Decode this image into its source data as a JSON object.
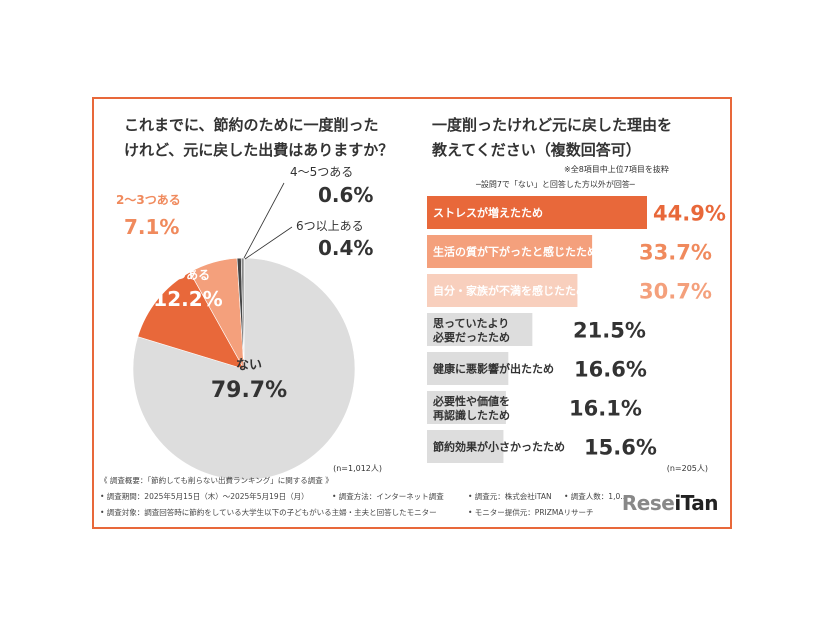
{
  "chart_data": [
    {
      "type": "pie",
      "title": "これまでに、節約のために一度削ったけれど、元に戻した出費はありますか？",
      "n_label": "(n=1,012人)",
      "slices": [
        {
          "label": "ない",
          "value": 79.7,
          "value_label": "79.7%",
          "color": "#dddddd",
          "label_color": "#333333"
        },
        {
          "label": "1つある",
          "value": 12.2,
          "value_label": "12.2%",
          "color": "#e8683a",
          "label_color": "#ffffff"
        },
        {
          "label": "2〜3つある",
          "value": 7.1,
          "value_label": "7.1%",
          "color": "#f4a07c",
          "label_color": "#f08a5d"
        },
        {
          "label": "4〜5つある",
          "value": 0.6,
          "value_label": "0.6%",
          "color": "#444444",
          "label_color": "#333333"
        },
        {
          "label": "6つ以上ある",
          "value": 0.4,
          "value_label": "0.4%",
          "color": "#888888",
          "label_color": "#333333"
        }
      ]
    },
    {
      "type": "bar",
      "orientation": "horizontal",
      "title": "一度削ったけれど元に戻した理由を教えてください（複数回答可）",
      "note": "※全8項目中上位7項目を抜粋",
      "subnote": "─設問7で「ない」と回答した方以外が回答─",
      "n_label": "(n=205人)",
      "xlim": [
        0,
        50
      ],
      "bars": [
        {
          "label": "ストレスが増えたため",
          "value": 44.9,
          "value_label": "44.9%",
          "color": "#e8683a",
          "text_color": "#ffffff",
          "value_color": "#e8683a"
        },
        {
          "label": "生活の質が下がったと感じたため",
          "value": 33.7,
          "value_label": "33.7%",
          "color": "#f4a07c",
          "text_color": "#ffffff",
          "value_color": "#f08a5d"
        },
        {
          "label": "自分・家族が不満を感じたため",
          "value": 30.7,
          "value_label": "30.7%",
          "color": "#f8cfbd",
          "text_color": "#ffffff",
          "value_color": "#f4a07c"
        },
        {
          "label": "思っていたより 必要だったため",
          "value": 21.5,
          "value_label": "21.5%",
          "color": "#dddddd",
          "text_color": "#333333",
          "value_color": "#333333"
        },
        {
          "label": "健康に悪影響が出たため",
          "value": 16.6,
          "value_label": "16.6%",
          "color": "#dddddd",
          "text_color": "#333333",
          "value_color": "#333333"
        },
        {
          "label": "必要性や価値を 再認識したため",
          "value": 16.1,
          "value_label": "16.1%",
          "color": "#dddddd",
          "text_color": "#333333",
          "value_color": "#333333"
        },
        {
          "label": "節約効果が小さかったため",
          "value": 15.6,
          "value_label": "15.6%",
          "color": "#dddddd",
          "text_color": "#333333",
          "value_color": "#333333"
        }
      ]
    }
  ],
  "titles": {
    "left_line1": "これまでに、節約のために一度削った",
    "left_line2": "けれど、元に戻した出費はありますか？",
    "right_line1": "一度削ったけれど元に戻した理由を",
    "right_line2": "教えてください（複数回答可）"
  },
  "footer": {
    "line1": "《 調査概要：「節約しても削らない出費ランキング」に関する調査 》",
    "line2a": "• 調査期間：2025年5月15日（木）〜2025年5月19日（月）",
    "line2b": "• 調査方法：インターネット調査",
    "line2c": "• 調査元：株式会社iTAN",
    "line2d": "• 調査人数：1,0...",
    "line3a": "• 調査対象：調査回答時に節約をしている大学生以下の子どもがいる主婦・主夫と回答したモニター",
    "line3b": "• モニター提供元：PRIZMAリサーチ"
  },
  "logo": {
    "part1": "Rese",
    "part2": "iTan"
  }
}
